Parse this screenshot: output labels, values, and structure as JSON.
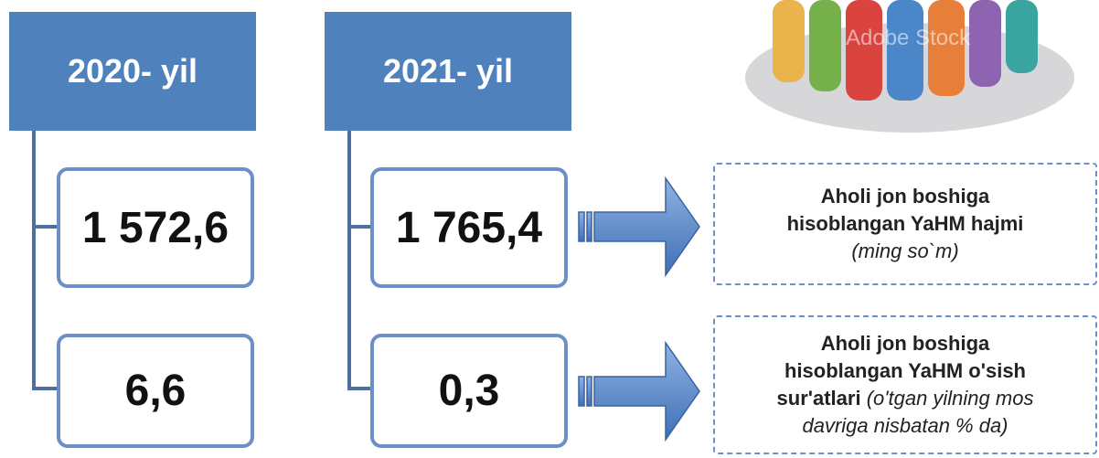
{
  "years": [
    {
      "label": "2020- yil",
      "values": [
        "1 572,6",
        "6,6"
      ]
    },
    {
      "label": "2021- yil",
      "values": [
        "1 765,4",
        "0,3"
      ]
    }
  ],
  "notes": [
    {
      "text": "Aholi jon boshiga hisoblangan YaHM hajmi",
      "unit": "(ming so`m)"
    },
    {
      "text": "Aholi jon boshiga hisoblangan YaHM o'sish sur'atlari",
      "unit": "(o'tgan yilning mos davriga nisbatan % da)"
    }
  ],
  "image": {
    "watermark": "Adobe Stock"
  }
}
